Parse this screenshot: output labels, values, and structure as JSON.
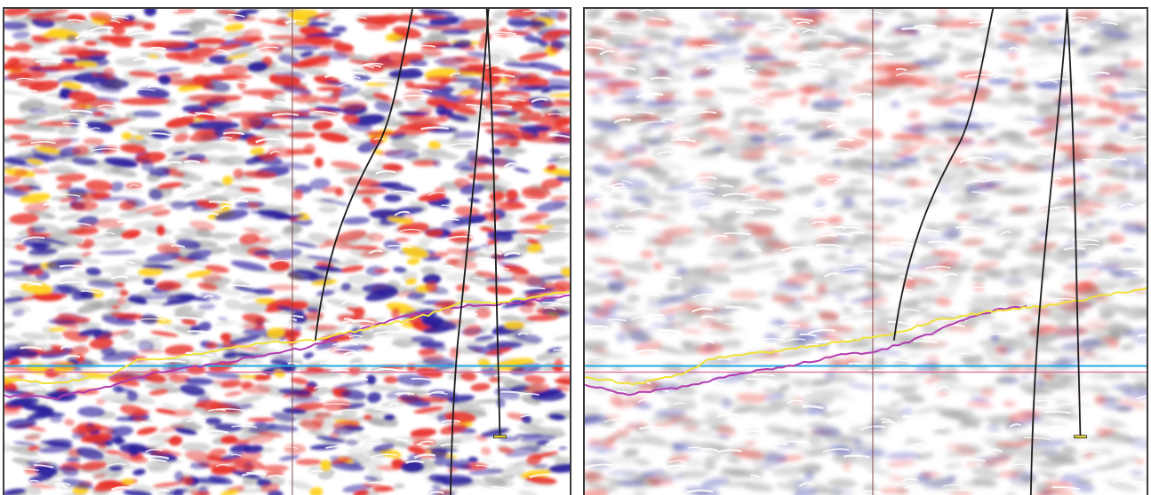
{
  "figure": {
    "panels": [
      {
        "id": "left",
        "description_name": "seismic-section-original",
        "amplitude_strength": 1.0,
        "colors": {
          "positive": "#e8322a",
          "positive_peak": "#ffd21a",
          "negative": "#2a1f9c",
          "background": "#ffffff"
        }
      },
      {
        "id": "right",
        "description_name": "seismic-section-filtered",
        "amplitude_strength": 0.45,
        "colors": {
          "positive": "#e8322a",
          "positive_peak": "#e8322a",
          "negative": "#3a3fb0",
          "background": "#ffffff"
        }
      }
    ],
    "line_colors": {
      "horizon_yellow": "#f0e23a",
      "horizon_magenta": "#b33bb0",
      "marker_cyan": "#27a9e1",
      "marker_pink": "#e06a9a",
      "well_path": "#1a1a1a",
      "vertical_marker": "#7a3b3b"
    }
  }
}
